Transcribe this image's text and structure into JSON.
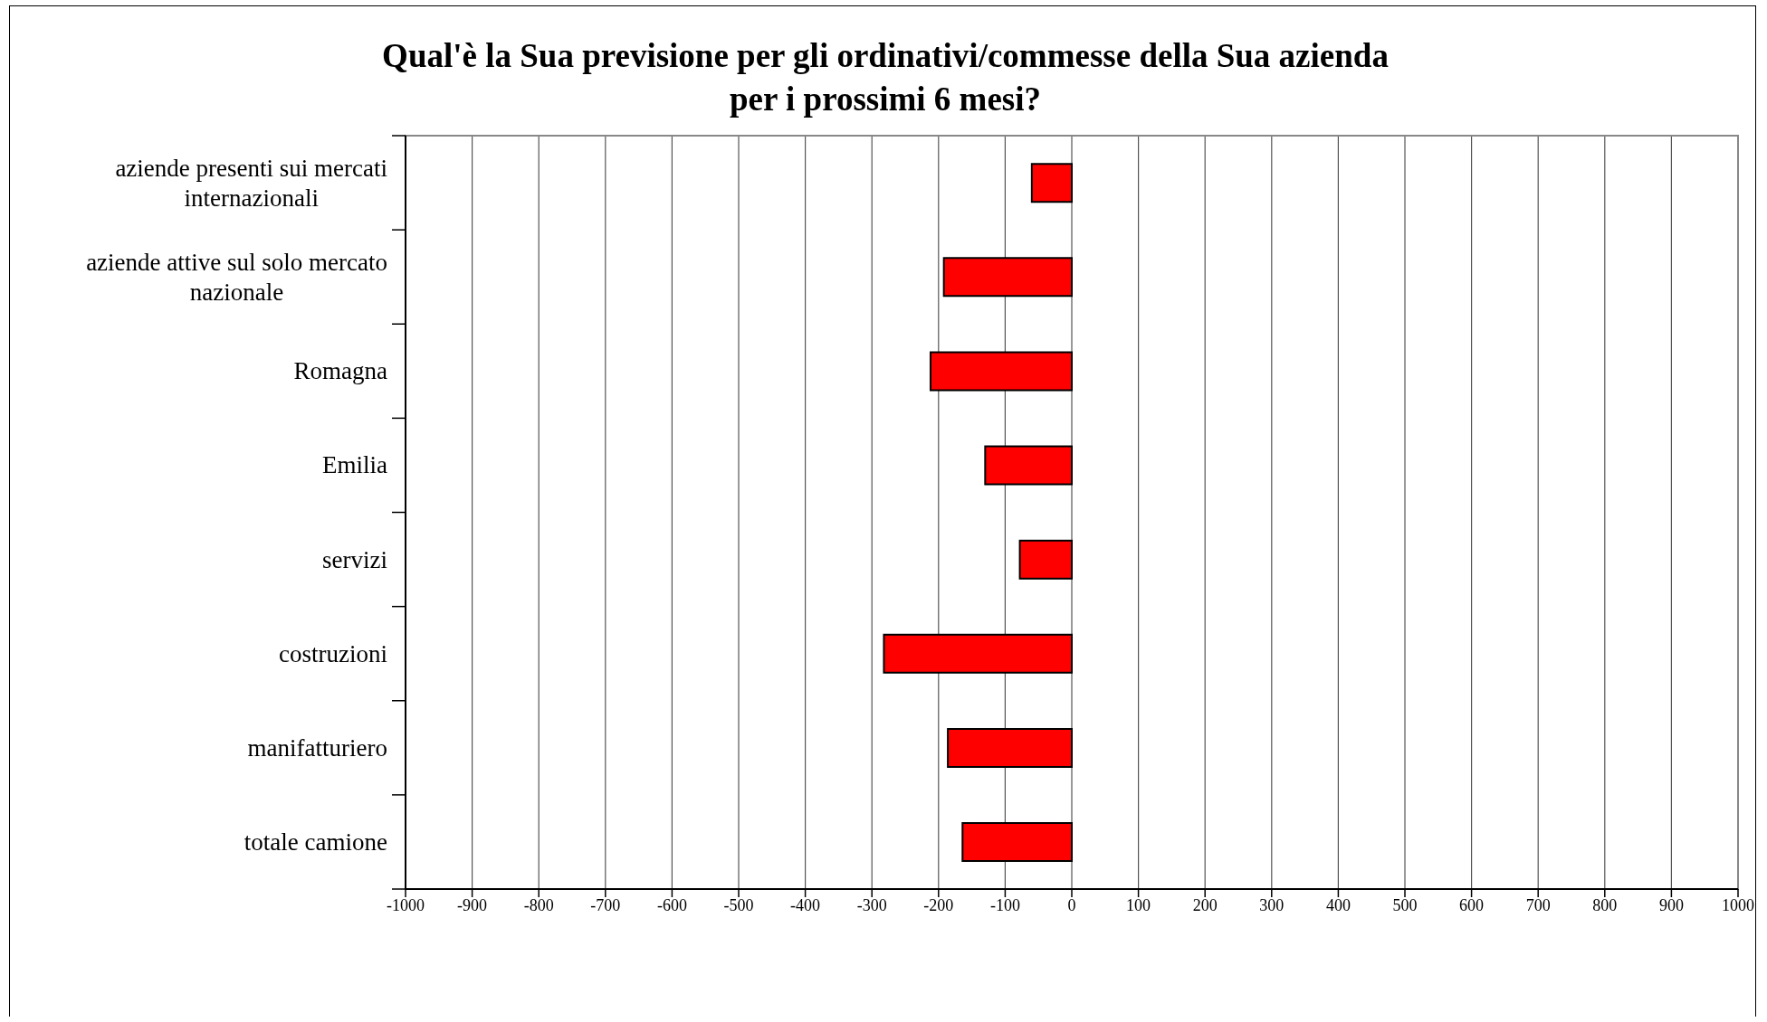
{
  "chart_data": {
    "type": "bar",
    "orientation": "horizontal",
    "title": "Qual'è la Sua previsione per gli ordinativi/commesse della Sua azienda per i prossimi 6 mesi?",
    "categories": [
      "aziende presenti sui mercati internazionali",
      "aziende attive sul solo mercato nazionale",
      "Romagna",
      "Emilia",
      "servizi",
      "costruzioni",
      "manifatturiero",
      "totale camione"
    ],
    "values": [
      -60,
      -192,
      -212,
      -130,
      -78,
      -282,
      -186,
      -164
    ],
    "color": "#ff0000",
    "xlim": [
      -1000,
      1000
    ],
    "xticks": [
      -1000,
      -900,
      -800,
      -700,
      -600,
      -500,
      -400,
      -300,
      -200,
      -100,
      0,
      100,
      200,
      300,
      400,
      500,
      600,
      700,
      800,
      900,
      1000
    ],
    "grid": "x"
  }
}
